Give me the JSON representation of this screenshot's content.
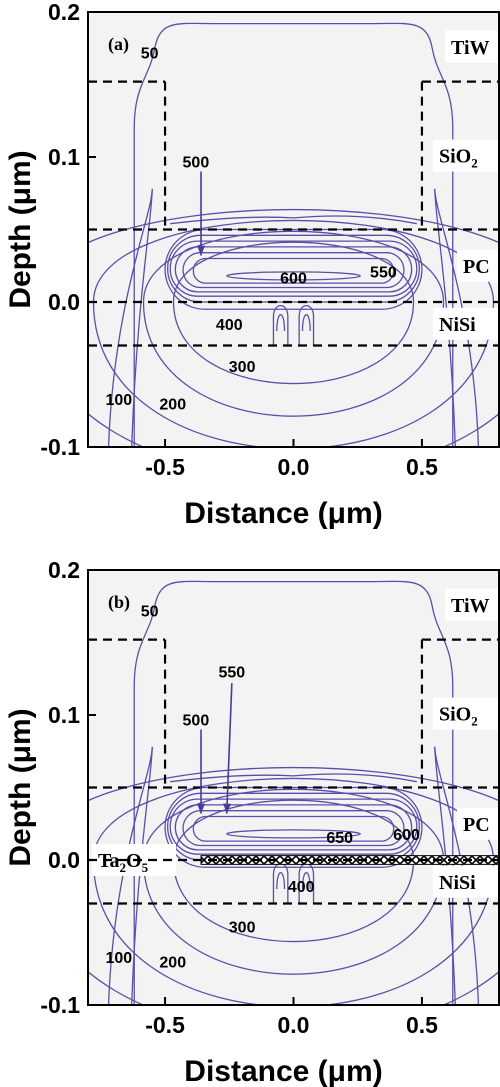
{
  "chart_data": [
    {
      "type": "heatmap",
      "panel_label": "(a)",
      "xlabel": "Distance (μm)",
      "ylabel": "Depth (μm)",
      "xlim": [
        -0.8,
        0.8
      ],
      "ylim": [
        -0.1,
        0.2
      ],
      "x_ticks": [
        "-0.5",
        "0.0",
        "0.5"
      ],
      "x_tick_values": [
        -0.5,
        0.0,
        0.5
      ],
      "y_ticks": [
        "0.2",
        "0.1",
        "0.0",
        "-0.1"
      ],
      "y_tick_values": [
        0.2,
        0.1,
        0.0,
        -0.1
      ],
      "layers": [
        {
          "name": "TiW",
          "sub": "",
          "y_top": 0.2,
          "y_bottom": 0.152
        },
        {
          "name": "SiO",
          "sub": "2",
          "y_top": 0.152,
          "y_bottom": 0.05
        },
        {
          "name": "PC",
          "sub": "",
          "y_top": 0.05,
          "y_bottom": 0.0
        },
        {
          "name": "NiSi",
          "sub": "",
          "y_top": 0.0,
          "y_bottom": -0.03
        }
      ],
      "boundaries_y": [
        0.152,
        0.05,
        0.0,
        -0.03
      ],
      "electrode_x": [
        -0.5,
        0.5
      ],
      "contour_labels": [
        {
          "text": "50",
          "x": -0.56,
          "y": 0.172
        },
        {
          "text": "500",
          "x": -0.38,
          "y": 0.097
        },
        {
          "text": "600",
          "x": 0.0,
          "y": 0.017
        },
        {
          "text": "550",
          "x": 0.35,
          "y": 0.021
        },
        {
          "text": "400",
          "x": -0.25,
          "y": -0.015
        },
        {
          "text": "300",
          "x": -0.2,
          "y": -0.044
        },
        {
          "text": "200",
          "x": -0.47,
          "y": -0.07
        },
        {
          "text": "100",
          "x": -0.68,
          "y": -0.067
        }
      ],
      "arrows": [
        {
          "from": [
            -0.36,
            0.09
          ],
          "to": [
            -0.36,
            0.032
          ]
        }
      ],
      "special_layer": null
    },
    {
      "type": "heatmap",
      "panel_label": "(b)",
      "xlabel": "Distance (μm)",
      "ylabel": "Depth (μm)",
      "xlim": [
        -0.8,
        0.8
      ],
      "ylim": [
        -0.1,
        0.2
      ],
      "x_ticks": [
        "-0.5",
        "0.0",
        "0.5"
      ],
      "x_tick_values": [
        -0.5,
        0.0,
        0.5
      ],
      "y_ticks": [
        "0.2",
        "0.1",
        "0.0",
        "-0.1"
      ],
      "y_tick_values": [
        0.2,
        0.1,
        0.0,
        -0.1
      ],
      "layers": [
        {
          "name": "TiW",
          "sub": "",
          "y_top": 0.2,
          "y_bottom": 0.152
        },
        {
          "name": "SiO",
          "sub": "2",
          "y_top": 0.152,
          "y_bottom": 0.05
        },
        {
          "name": "PC",
          "sub": "",
          "y_top": 0.05,
          "y_bottom": 0.0
        },
        {
          "name": "NiSi",
          "sub": "",
          "y_top": 0.0,
          "y_bottom": -0.03
        }
      ],
      "boundaries_y": [
        0.152,
        0.05,
        0.0,
        -0.03
      ],
      "electrode_x": [
        -0.5,
        0.5
      ],
      "contour_labels": [
        {
          "text": "50",
          "x": -0.56,
          "y": 0.172
        },
        {
          "text": "550",
          "x": -0.24,
          "y": 0.13
        },
        {
          "text": "500",
          "x": -0.38,
          "y": 0.097
        },
        {
          "text": "650",
          "x": 0.18,
          "y": 0.016
        },
        {
          "text": "600",
          "x": 0.44,
          "y": 0.018
        },
        {
          "text": "400",
          "x": 0.03,
          "y": -0.018
        },
        {
          "text": "300",
          "x": -0.2,
          "y": -0.046
        },
        {
          "text": "200",
          "x": -0.47,
          "y": -0.07
        },
        {
          "text": "100",
          "x": -0.68,
          "y": -0.067
        }
      ],
      "arrows": [
        {
          "from": [
            -0.36,
            0.09
          ],
          "to": [
            -0.36,
            0.032
          ]
        },
        {
          "from": [
            -0.24,
            0.122
          ],
          "to": [
            -0.26,
            0.032
          ]
        }
      ],
      "special_layer": {
        "name": "Ta",
        "sub1": "2",
        "mid": "O",
        "sub2": "5"
      }
    }
  ]
}
